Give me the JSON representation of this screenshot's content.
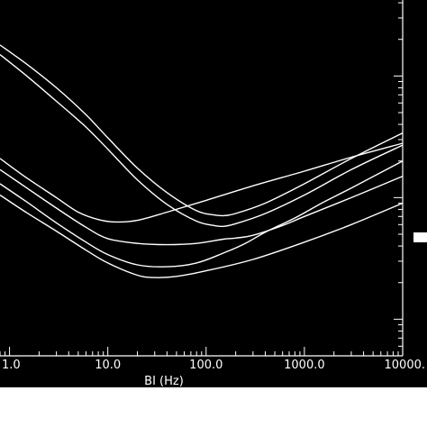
{
  "chart_data": {
    "type": "line",
    "title": "",
    "xlabel": "BI (Hz)",
    "ylabel": "",
    "x_scale": "log",
    "y_scale": "log",
    "xlim": [
      0.8,
      10000
    ],
    "ylim": [
      0.5,
      500
    ],
    "grid": false,
    "x_tick_labels": [
      "1.0",
      "10.0",
      "100.0",
      "1000.0",
      "10000."
    ],
    "x_ticks": [
      1,
      10,
      100,
      1000,
      10000
    ],
    "series": [
      {
        "x": [
          0.8,
          1.5,
          3,
          6,
          10,
          20,
          40,
          80,
          120,
          150,
          200,
          400,
          1000,
          3000,
          10000
        ],
        "y": [
          180,
          125,
          80,
          48,
          31,
          17.5,
          11,
          7.8,
          7.2,
          7.1,
          7.4,
          9,
          13,
          21,
          34
        ]
      },
      {
        "x": [
          0.8,
          1.5,
          3,
          6,
          10,
          20,
          40,
          80,
          120,
          150,
          200,
          400,
          1000,
          3000,
          10000
        ],
        "y": [
          150,
          100,
          62,
          38,
          25,
          14,
          8.8,
          6.4,
          5.9,
          5.8,
          6.1,
          7.4,
          10.5,
          17,
          27
        ]
      },
      {
        "x": [
          0.8,
          1.5,
          3,
          5,
          8,
          12,
          20,
          40,
          100,
          300,
          1000,
          3000,
          10000
        ],
        "y": [
          21,
          14.5,
          10,
          7.6,
          6.6,
          6.3,
          6.5,
          7.6,
          9.5,
          12.5,
          16.5,
          21.5,
          28
        ]
      },
      {
        "x": [
          0.8,
          1.5,
          3,
          6,
          10,
          20,
          40,
          80,
          150,
          200,
          300,
          600,
          1000,
          3000,
          10000
        ],
        "y": [
          17,
          12,
          8.2,
          5.7,
          4.6,
          4.2,
          4.1,
          4.2,
          4.55,
          4.65,
          4.9,
          5.9,
          7,
          10,
          15
        ]
      },
      {
        "x": [
          0.8,
          1.5,
          3,
          6,
          10,
          20,
          40,
          80,
          150,
          250,
          400,
          800,
          1500,
          3000,
          10000
        ],
        "y": [
          13,
          9.2,
          6.2,
          4.3,
          3.4,
          2.8,
          2.7,
          2.9,
          3.5,
          4.2,
          5.2,
          6.8,
          9,
          12,
          20
        ]
      },
      {
        "x": [
          0.8,
          1.5,
          3,
          6,
          10,
          20,
          30,
          50,
          100,
          300,
          1000,
          3000,
          10000
        ],
        "y": [
          10.5,
          7.5,
          5.3,
          3.7,
          2.9,
          2.3,
          2.2,
          2.25,
          2.5,
          3.1,
          4.3,
          6,
          9
        ]
      }
    ]
  }
}
